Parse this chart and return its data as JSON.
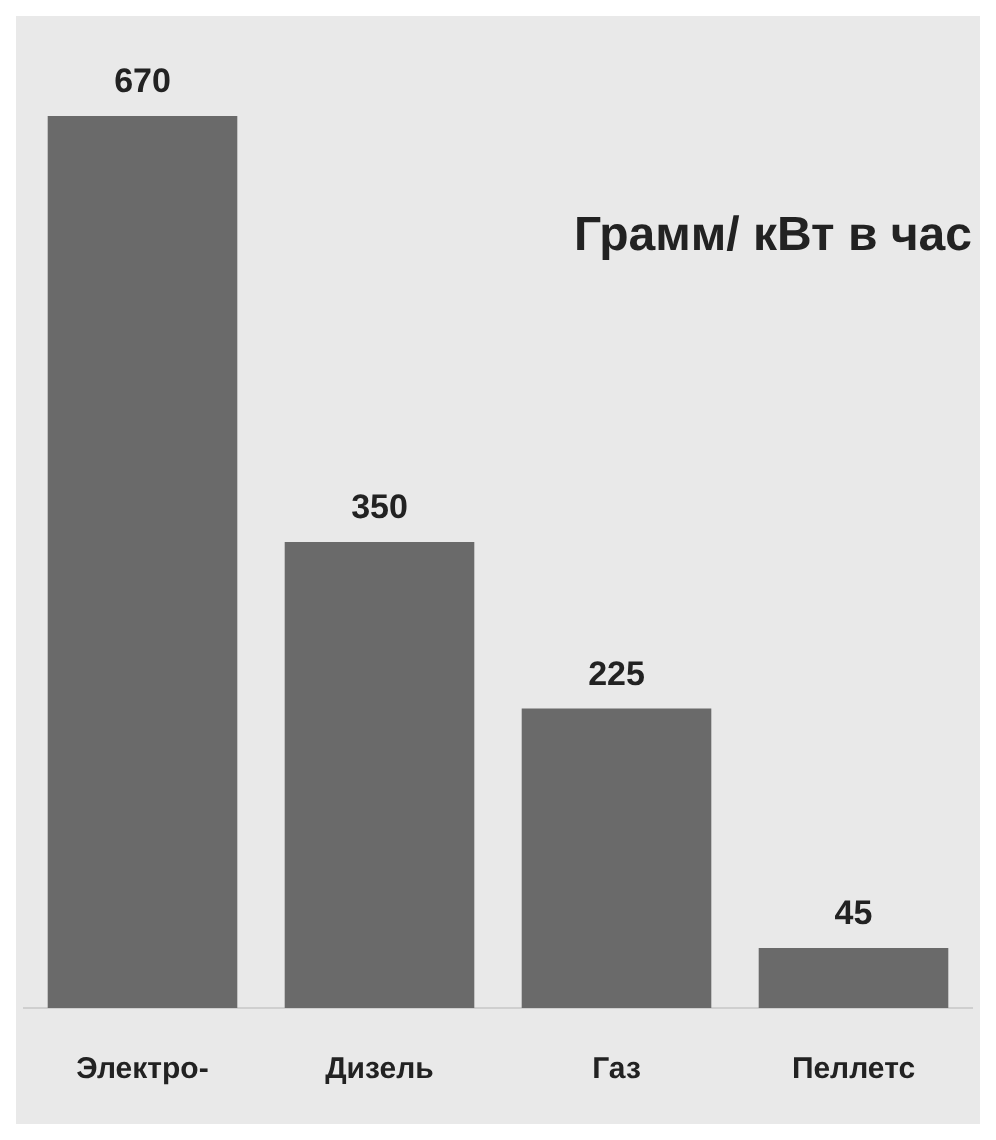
{
  "chart_data": {
    "type": "bar",
    "title": "Грамм/ кВт в час",
    "categories": [
      "Электро-",
      "Дизель",
      "Газ",
      "Пеллетс"
    ],
    "values": [
      670,
      350,
      225,
      45
    ],
    "color": "#6a6a6a",
    "data_labels": true
  }
}
